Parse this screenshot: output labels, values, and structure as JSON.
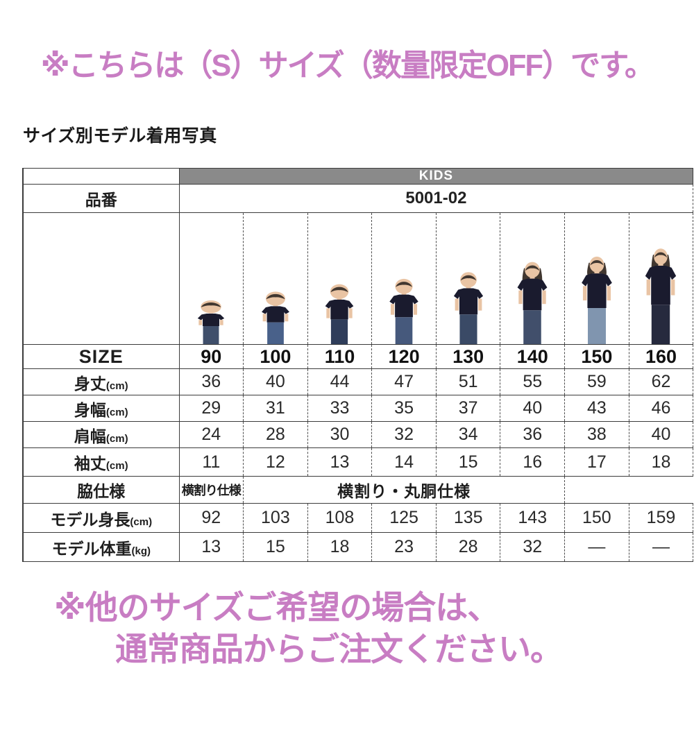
{
  "top_notice": "※こちらは（S）サイズ（数量限定OFF）です。",
  "section_title": "サイズ別モデル着用写真",
  "table": {
    "brand_header": "KIDS",
    "part_label": "品番",
    "part_value": "5001-02",
    "size_label": "SIZE",
    "sizes": [
      "90",
      "100",
      "110",
      "120",
      "130",
      "140",
      "150",
      "160"
    ],
    "rows": [
      {
        "label": "身丈",
        "unit": "(cm)",
        "values": [
          "36",
          "40",
          "44",
          "47",
          "51",
          "55",
          "59",
          "62"
        ]
      },
      {
        "label": "身幅",
        "unit": "(cm)",
        "values": [
          "29",
          "31",
          "33",
          "35",
          "37",
          "40",
          "43",
          "46"
        ]
      },
      {
        "label": "肩幅",
        "unit": "(cm)",
        "values": [
          "24",
          "28",
          "30",
          "32",
          "34",
          "36",
          "38",
          "40"
        ]
      },
      {
        "label": "袖丈",
        "unit": "(cm)",
        "values": [
          "11",
          "12",
          "13",
          "14",
          "15",
          "16",
          "17",
          "18"
        ]
      }
    ],
    "side_spec": {
      "label": "脇仕様",
      "first": "横割り仕様",
      "rest": "横割り・丸胴仕様"
    },
    "model_height": {
      "label": "モデル身長",
      "unit": "(cm)",
      "values": [
        "92",
        "103",
        "108",
        "125",
        "135",
        "143",
        "150",
        "159"
      ]
    },
    "model_weight": {
      "label": "モデル体重",
      "unit": "(kg)",
      "values": [
        "13",
        "15",
        "18",
        "23",
        "28",
        "32",
        "—",
        "—"
      ]
    },
    "photos": {
      "type": "kid-model-photo",
      "tshirt_color": "#1a1b2e",
      "count": 8
    }
  },
  "bottom_notice_line1": "※他のサイズご希望の場合は、",
  "bottom_notice_line2": "通常商品からご注文ください。",
  "colors": {
    "accent_pink": "#c87dc3",
    "header_gray": "#8a8a8a",
    "border": "#3b3b3b"
  }
}
